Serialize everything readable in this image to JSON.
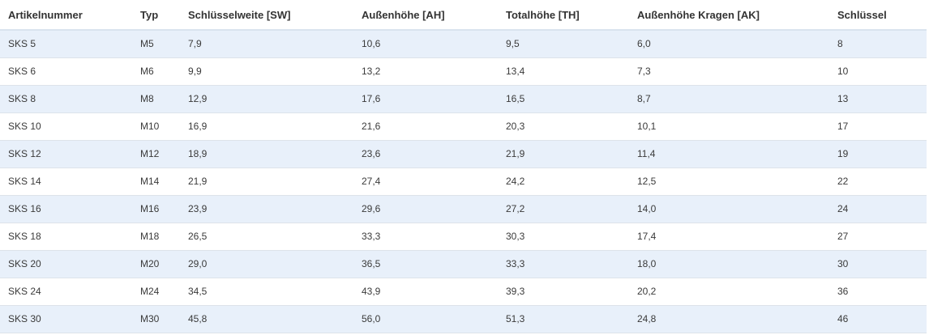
{
  "table": {
    "headers": [
      "Artikelnummer",
      "Typ",
      "Schlüsselweite [SW]",
      "Außenhöhe [AH]",
      "Totalhöhe [TH]",
      "Außenhöhe Kragen [AK]",
      "Schlüssel"
    ],
    "rows": [
      [
        "SKS 5",
        "M5",
        "7,9",
        "10,6",
        "9,5",
        "6,0",
        "8"
      ],
      [
        "SKS 6",
        "M6",
        "9,9",
        "13,2",
        "13,4",
        "7,3",
        "10"
      ],
      [
        "SKS 8",
        "M8",
        "12,9",
        "17,6",
        "16,5",
        "8,7",
        "13"
      ],
      [
        "SKS 10",
        "M10",
        "16,9",
        "21,6",
        "20,3",
        "10,1",
        "17"
      ],
      [
        "SKS 12",
        "M12",
        "18,9",
        "23,6",
        "21,9",
        "11,4",
        "19"
      ],
      [
        "SKS 14",
        "M14",
        "21,9",
        "27,4",
        "24,2",
        "12,5",
        "22"
      ],
      [
        "SKS 16",
        "M16",
        "23,9",
        "29,6",
        "27,2",
        "14,0",
        "24"
      ],
      [
        "SKS 18",
        "M18",
        "26,5",
        "33,3",
        "30,3",
        "17,4",
        "27"
      ],
      [
        "SKS 20",
        "M20",
        "29,0",
        "36,5",
        "33,3",
        "18,0",
        "30"
      ],
      [
        "SKS 24",
        "M24",
        "34,5",
        "43,9",
        "39,3",
        "20,2",
        "36"
      ],
      [
        "SKS 30",
        "M30",
        "45,8",
        "56,0",
        "51,3",
        "24,8",
        "46"
      ]
    ]
  }
}
